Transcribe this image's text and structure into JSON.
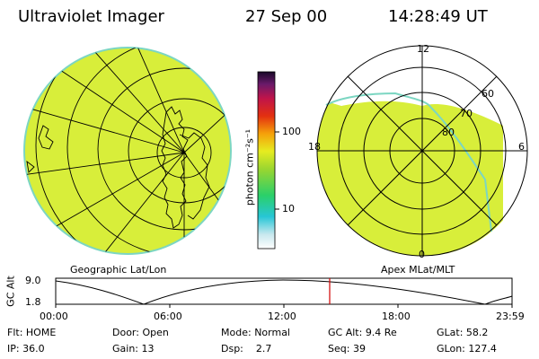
{
  "header": {
    "title": "Ultraviolet Imager",
    "date": "27 Sep 00",
    "time": "14:28:49 UT"
  },
  "colorbar": {
    "label": "photon cm⁻²s⁻¹",
    "ticks": [
      "100",
      "10"
    ]
  },
  "geo_panel": {
    "caption": "Geographic Lat/Lon"
  },
  "polar_panel": {
    "caption": "Apex MLat/MLT",
    "mlt_labels": {
      "top": "12",
      "left": "18",
      "right": "6",
      "bottom": "0"
    },
    "lat_labels": [
      "60",
      "70",
      "80"
    ]
  },
  "altitude_plot": {
    "ylabel": "GC Alt",
    "y_ticks": [
      "9.0",
      "1.8"
    ],
    "x_ticks": [
      "00:00",
      "06:00",
      "12:00",
      "18:00",
      "23:59"
    ]
  },
  "footer": {
    "row1": [
      {
        "label": "Flt:",
        "value": "HOME"
      },
      {
        "label": "Door:",
        "value": "Open"
      },
      {
        "label": "Mode:",
        "value": "Normal"
      },
      {
        "label": "GC Alt:",
        "value": "9.4 Re"
      },
      {
        "label": "GLat:",
        "value": "58.2"
      }
    ],
    "row2": [
      {
        "label": "IP:",
        "value": "36.0"
      },
      {
        "label": "Gain:",
        "value": "13"
      },
      {
        "label": "Dsp:",
        "value": "2.7"
      },
      {
        "label": "Seq:",
        "value": "39"
      },
      {
        "label": "GLon:",
        "value": "127.4"
      }
    ]
  },
  "colors": {
    "fill": "#d8ee3a",
    "edge": "#7cd6c2",
    "marker": "#d00000"
  }
}
